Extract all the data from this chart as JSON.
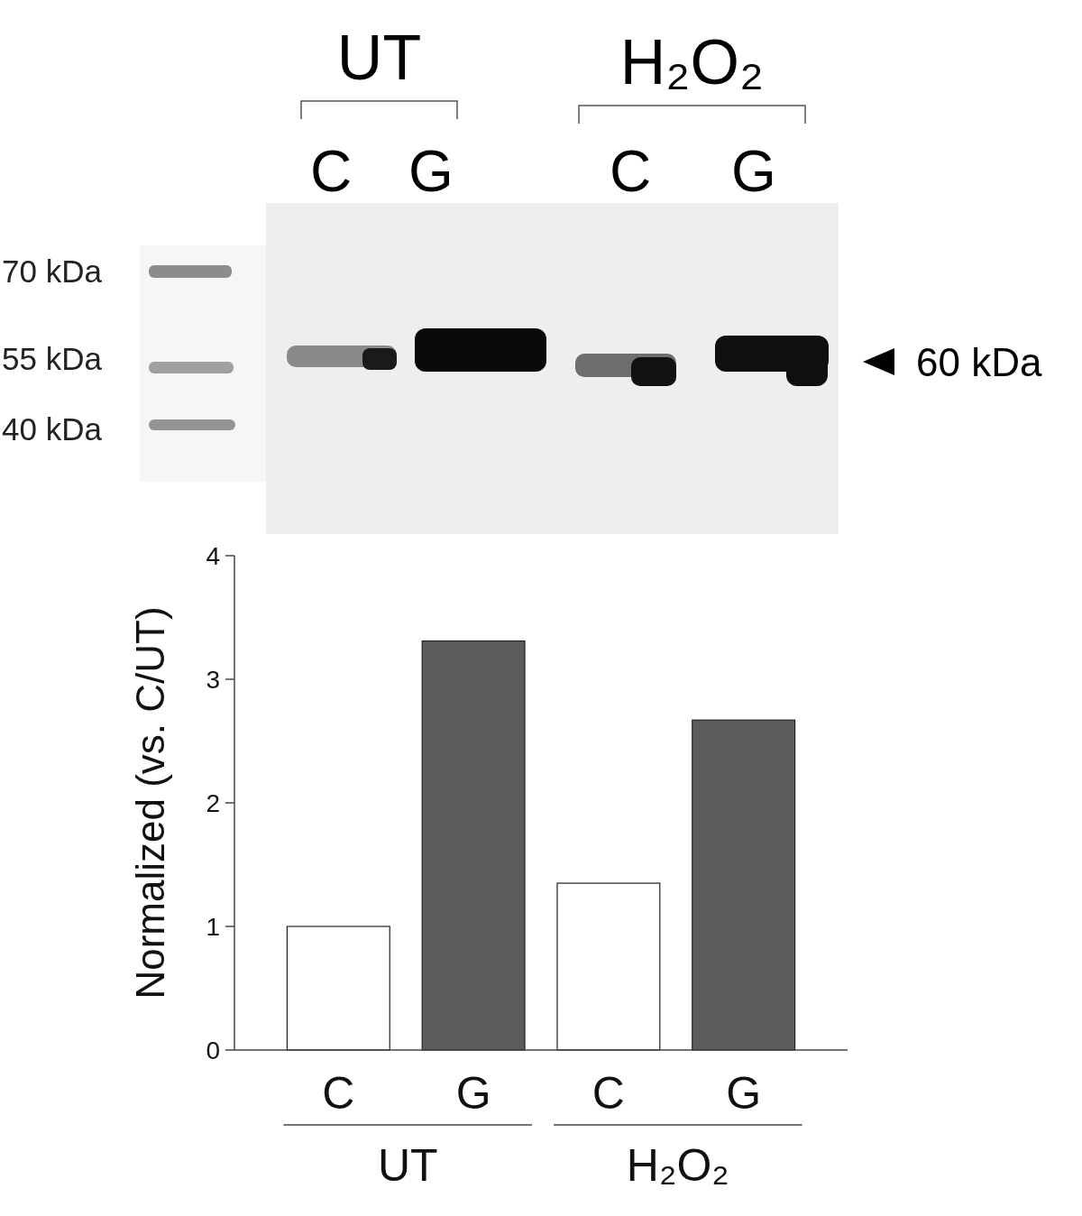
{
  "chart_data": [
    {
      "type": "other",
      "categories": [
        "C",
        "G",
        "C",
        "G"
      ],
      "annotations": [
        "UT",
        "H₂O₂",
        "70 kDa",
        "55 kDa",
        "40 kDa",
        "60 kDa"
      ]
    },
    {
      "type": "bar",
      "categories": [
        "C",
        "G",
        "C",
        "G"
      ],
      "values": [
        1,
        3.31,
        1.35,
        2.67
      ],
      "colors": [
        "#ffffff",
        "#5c5c5c",
        "#ffffff",
        "#5c5c5c"
      ],
      "ylabel": "Normalized (vs. C/UT)",
      "ylim": [
        0,
        4
      ],
      "yticks": [
        0,
        1,
        2,
        3,
        4
      ],
      "annotations": [
        "UT",
        "H₂O₂"
      ]
    }
  ]
}
